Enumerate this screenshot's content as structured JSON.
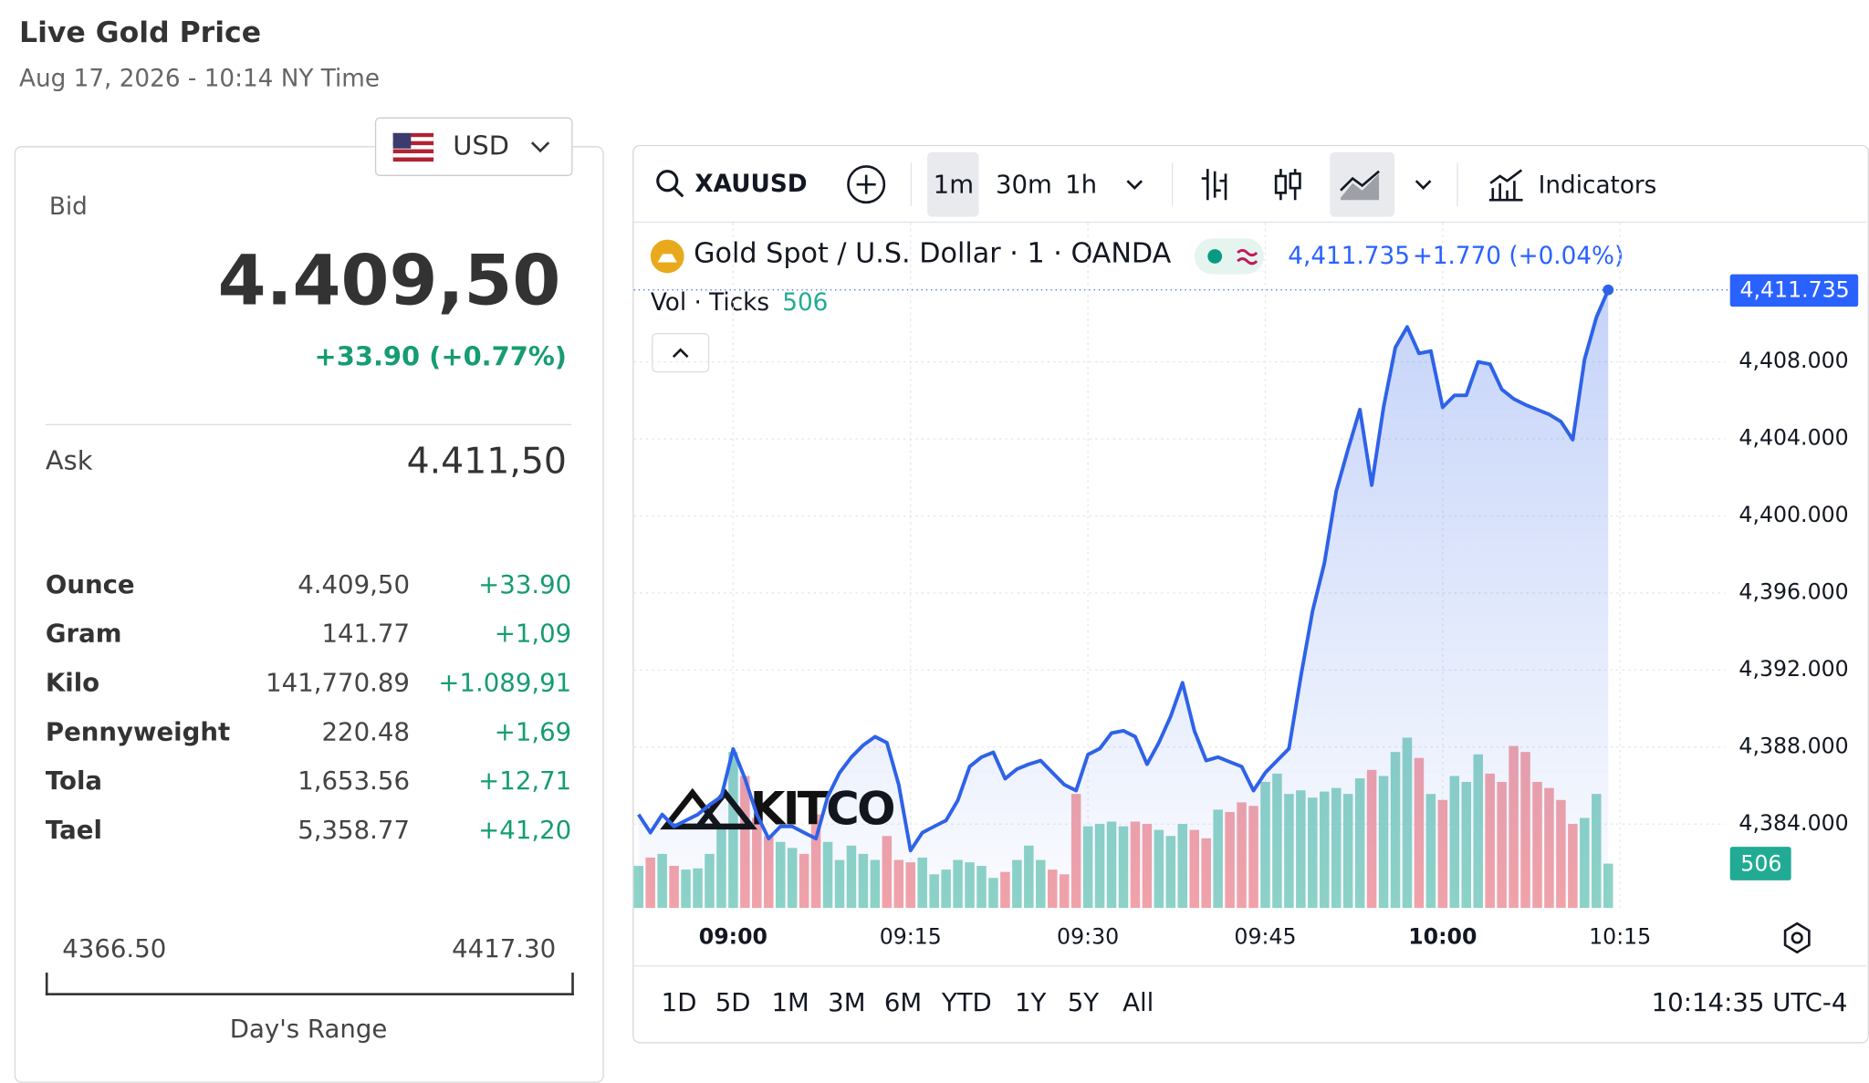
{
  "header": {
    "title": "Live Gold Price",
    "timestamp": "Aug 17, 2026 - 10:14 NY Time"
  },
  "currency": "USD",
  "quote": {
    "bid_label": "Bid",
    "bid": "4.409,50",
    "bid_change": "+33.90 (+0.77%)",
    "ask_label": "Ask",
    "ask": "4.411,50"
  },
  "units": {
    "rows": [
      [
        "Ounce",
        "4.409,50",
        "+33.90"
      ],
      [
        "Gram",
        "141.77",
        "+1,09"
      ],
      [
        "Kilo",
        "141,770.89",
        "+1.089,91"
      ],
      [
        "Pennyweight",
        "220.48",
        "+1,69"
      ],
      [
        "Tola",
        "1,653.56",
        "+12,71"
      ],
      [
        "Tael",
        "5,358.77",
        "+41,20"
      ]
    ]
  },
  "day_range": {
    "low": "4366.50",
    "high": "4417.30",
    "label": "Day's Range"
  },
  "toolbar": {
    "symbol": "XAUUSD",
    "intervals": [
      "1m",
      "30m",
      "1h"
    ],
    "indicators": "Indicators"
  },
  "legend": {
    "instrument": "Gold Spot / U.S. Dollar · 1 · OANDA",
    "price": "4,411.735",
    "change": "+1.770 (+0.04%)",
    "volume_label": "Vol · Ticks"
  },
  "watermark": "KITCO",
  "periods": [
    "1D",
    "5D",
    "1M",
    "3M",
    "6M",
    "YTD",
    "1Y",
    "5Y",
    "All"
  ],
  "clock": "10:14:35 UTC-4",
  "chart_data": {
    "type": "line",
    "categories": [
      null,
      null,
      null,
      null,
      null,
      null,
      null,
      null,
      "09:00",
      null,
      null,
      null,
      null,
      null,
      null,
      null,
      null,
      null,
      null,
      null,
      null,
      null,
      null,
      "09:15",
      null,
      null,
      null,
      null,
      null,
      null,
      null,
      null,
      null,
      null,
      null,
      null,
      null,
      null,
      "09:30",
      null,
      null,
      null,
      null,
      null,
      null,
      null,
      null,
      null,
      null,
      null,
      null,
      null,
      null,
      "09:45",
      null,
      null,
      null,
      null,
      null,
      null,
      null,
      null,
      null,
      null,
      null,
      null,
      null,
      null,
      "10:00",
      null,
      null,
      null,
      null,
      null,
      null,
      null,
      null,
      null,
      null,
      null,
      null,
      null,
      null,
      "10:15"
    ],
    "series": [
      {
        "name": "Gold Spot",
        "color": "#2e62e8",
        "values": [
          4384.5,
          4383.56,
          4384.5,
          4383.88,
          4384.19,
          4384.5,
          4385.0,
          4385.43,
          4387.9,
          4386.36,
          4384.5,
          4383.25,
          4383.88,
          4383.88,
          4383.56,
          4383.25,
          4385.43,
          4386.67,
          4387.48,
          4388.1,
          4388.54,
          4388.23,
          4386.05,
          4382.63,
          4383.56,
          4383.88,
          4384.19,
          4385.24,
          4386.99,
          4387.48,
          4387.73,
          4386.36,
          4386.86,
          4387.11,
          4387.3,
          4386.67,
          4386.05,
          4385.74,
          4387.61,
          4387.92,
          4388.73,
          4388.85,
          4388.54,
          4387.11,
          4388.23,
          4389.6,
          4391.34,
          4388.85,
          4387.3,
          4387.48,
          4387.23,
          4386.99,
          4385.74,
          4386.67,
          4387.3,
          4387.92,
          4391.65,
          4395.07,
          4397.56,
          4401.29,
          4403.47,
          4405.52,
          4401.6,
          4405.64,
          4408.75,
          4409.81,
          4408.44,
          4408.56,
          4405.64,
          4406.26,
          4406.26,
          4408.0,
          4407.88,
          4406.57,
          4406.08,
          4405.77,
          4405.52,
          4405.27,
          4404.9,
          4403.96,
          4408.13,
          4410.31,
          4411.735,
          null
        ],
        "value_labels": [
          null,
          null,
          null,
          null,
          null,
          null,
          null,
          null,
          null,
          null,
          null,
          null,
          null,
          null,
          null,
          null,
          null,
          null,
          null,
          null,
          null,
          null,
          null,
          null,
          null,
          null,
          null,
          null,
          null,
          null,
          null,
          null,
          null,
          null,
          null,
          null,
          null,
          null,
          null,
          null,
          null,
          null,
          null,
          null,
          null,
          null,
          null,
          null,
          null,
          null,
          null,
          null,
          null,
          null,
          null,
          null,
          null,
          null,
          null,
          null,
          null,
          null,
          null,
          null,
          null,
          null,
          null,
          null,
          null,
          null,
          null,
          null,
          null,
          null,
          null,
          null,
          null,
          null,
          null,
          null,
          null,
          null,
          "4,411.735",
          null
        ]
      },
      {
        "name": "Vol",
        "type": "bar",
        "axis": "y2",
        "color": "#8ed4c6",
        "down_color": "#f4a3a8",
        "values": [
          480,
          575,
          617,
          480,
          438,
          452,
          617,
          959,
          1781,
          1507,
          1028,
          822,
          754,
          685,
          617,
          1069,
          754,
          548,
          712,
          617,
          548,
          822,
          548,
          521,
          575,
          384,
          438,
          548,
          521,
          480,
          343,
          411,
          548,
          712,
          548,
          438,
          384,
          1302,
          932,
          959,
          986,
          932,
          986,
          959,
          891,
          822,
          959,
          891,
          795,
          1123,
          1096,
          1206,
          1165,
          1439,
          1534,
          1302,
          1343,
          1260,
          1329,
          1370,
          1302,
          1480,
          1576,
          1507,
          1781,
          1945,
          1713,
          1302,
          1233,
          1507,
          1439,
          1754,
          1534,
          1439,
          1850,
          1781,
          1439,
          1370,
          1233,
          959,
          1028,
          1302,
          506,
          null
        ]
      }
    ],
    "ylim": [
      4379.65,
      4414.97
    ],
    "yticks": [
      {
        "value": 4384,
        "label": "4,384.000"
      },
      {
        "value": 4388,
        "label": "4,388.000"
      },
      {
        "value": 4392,
        "label": "4,392.000"
      },
      {
        "value": 4396,
        "label": "4,396.000"
      },
      {
        "value": 4400,
        "label": "4,400.000"
      },
      {
        "value": 4404,
        "label": "4,404.000"
      },
      {
        "value": 4408,
        "label": "4,408.000"
      }
    ],
    "y2lim": [
      0,
      7770
    ],
    "grid": true
  }
}
